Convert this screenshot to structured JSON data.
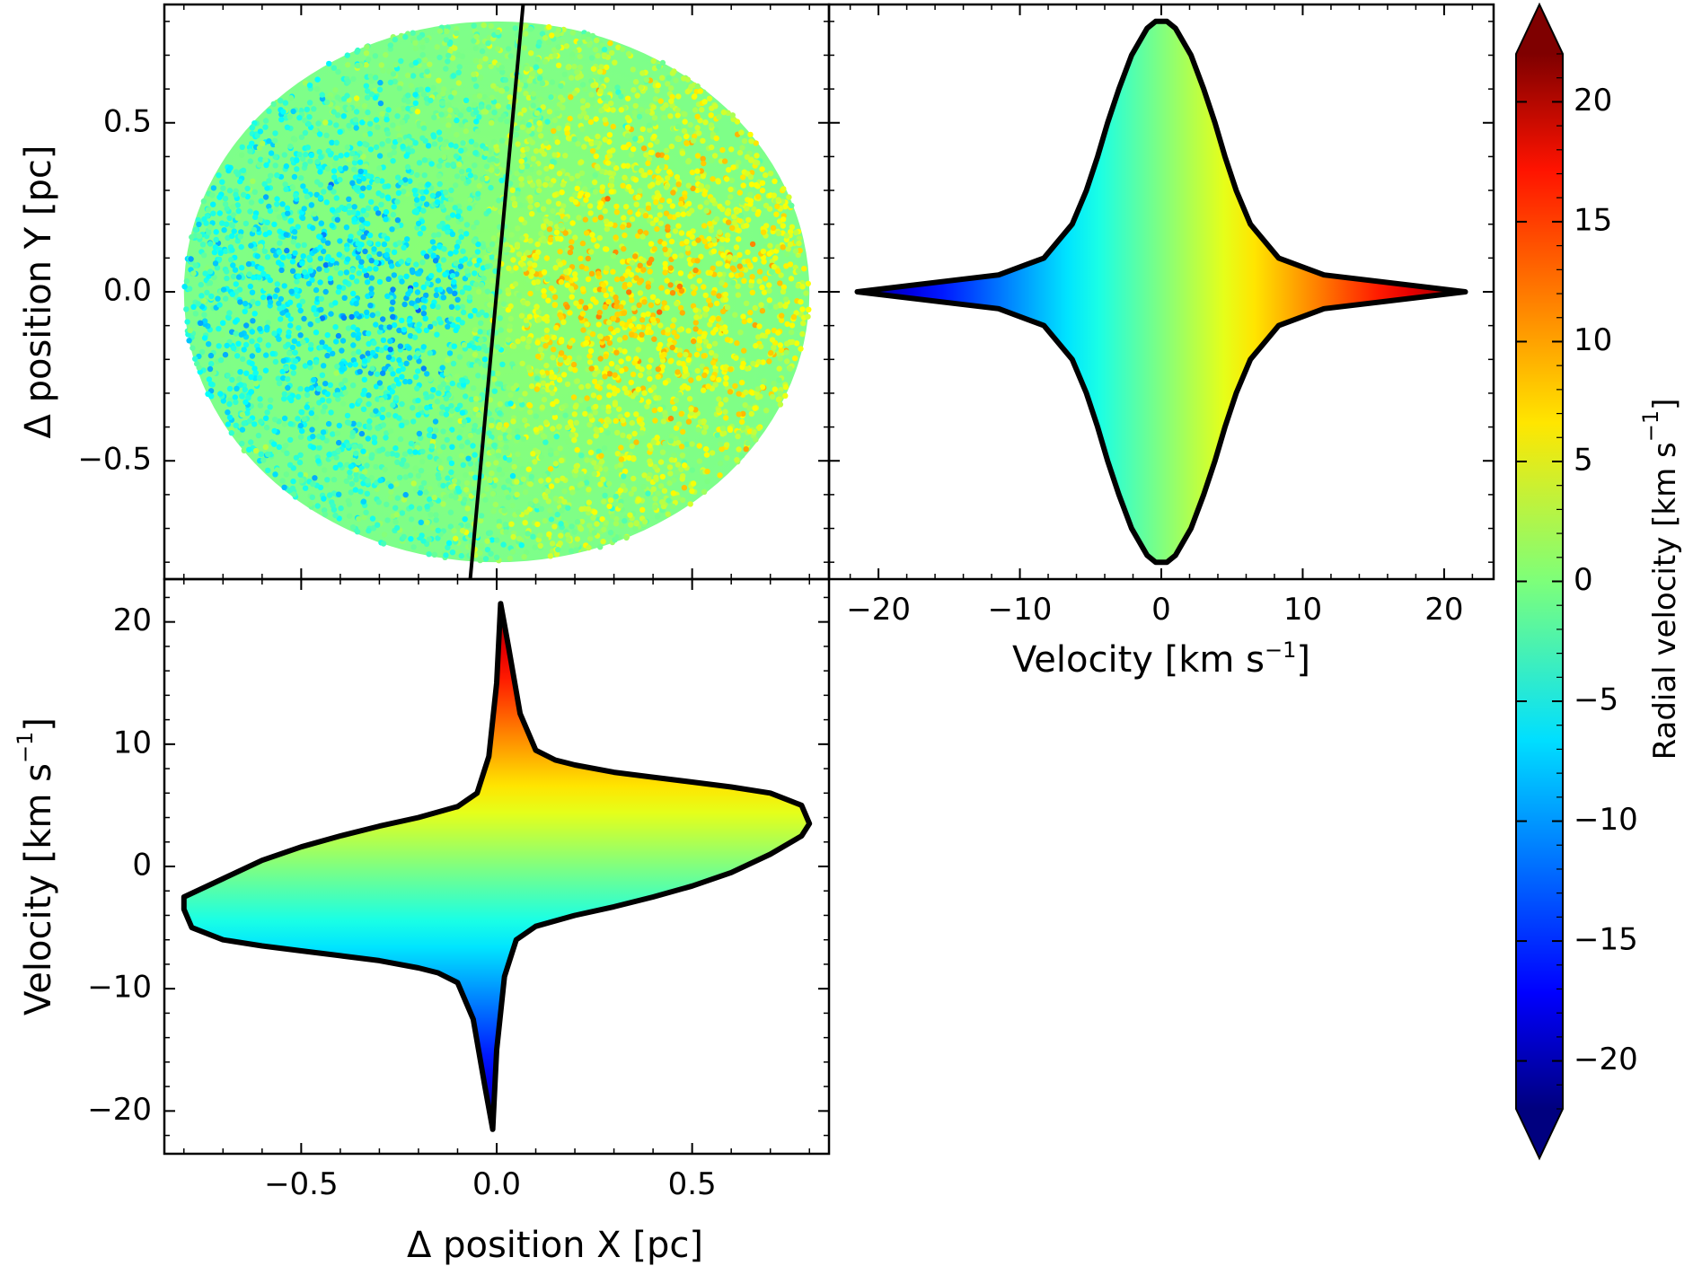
{
  "colors": {
    "outline": "#000000",
    "colormap": "jet",
    "rotation_line": "#000000"
  },
  "chart_data": [
    {
      "type": "scatter",
      "panel": "top-left",
      "xlabel": "",
      "ylabel": "Δ position Y [pc]",
      "xlim": [
        -0.85,
        0.85
      ],
      "ylim": [
        -0.85,
        0.85
      ],
      "yticks": [
        {
          "value": 0.5,
          "label": "0.5"
        },
        {
          "value": 0.0,
          "label": "0.0"
        },
        {
          "value": -0.5,
          "label": "−0.5"
        }
      ],
      "disk_radius_pc": 0.8,
      "rotation_axis_line": {
        "x": [
          -0.07,
          0.07
        ],
        "y": [
          -0.88,
          0.88
        ]
      },
      "colored_by": "radial velocity",
      "note_values": "points colored blue on left (negative velocity) and red on right (positive velocity), strongest near center"
    },
    {
      "type": "scatter",
      "panel": "top-right",
      "xlabel": "Velocity [km s−1]",
      "ylabel": "",
      "xlim": [
        -23.5,
        23.5
      ],
      "ylim": [
        -0.85,
        0.85
      ],
      "xticks": [
        {
          "value": -20,
          "label": "−20"
        },
        {
          "value": -10,
          "label": "−10"
        },
        {
          "value": 0,
          "label": "0"
        },
        {
          "value": 10,
          "label": "10"
        },
        {
          "value": 20,
          "label": "20"
        }
      ],
      "outline_y_vs_vmax": [
        [
          0.0,
          21.5
        ],
        [
          0.05,
          11.5
        ],
        [
          0.1,
          8.3
        ],
        [
          0.2,
          6.3
        ],
        [
          0.3,
          5.3
        ],
        [
          0.4,
          4.5
        ],
        [
          0.5,
          3.8
        ],
        [
          0.6,
          3.0
        ],
        [
          0.7,
          2.1
        ],
        [
          0.78,
          1.0
        ],
        [
          0.8,
          0.4
        ]
      ]
    },
    {
      "type": "scatter",
      "panel": "bottom-left",
      "xlabel": "Δ position X [pc]",
      "ylabel": "Velocity [km s−1]",
      "xlim": [
        -0.85,
        0.85
      ],
      "ylim": [
        -23.5,
        23.5
      ],
      "xticks": [
        {
          "value": -0.5,
          "label": "−0.5"
        },
        {
          "value": 0.0,
          "label": "0.0"
        },
        {
          "value": 0.5,
          "label": "0.5"
        }
      ],
      "yticks": [
        {
          "value": 20,
          "label": "20"
        },
        {
          "value": 10,
          "label": "10"
        },
        {
          "value": 0,
          "label": "0"
        },
        {
          "value": -10,
          "label": "−10"
        },
        {
          "value": -20,
          "label": "−20"
        }
      ],
      "outline_upper": [
        [
          -0.8,
          -2.5
        ],
        [
          -0.7,
          -1.0
        ],
        [
          -0.6,
          0.5
        ],
        [
          -0.5,
          1.6
        ],
        [
          -0.4,
          2.5
        ],
        [
          -0.3,
          3.3
        ],
        [
          -0.2,
          4.0
        ],
        [
          -0.1,
          4.9
        ],
        [
          -0.05,
          6.0
        ],
        [
          -0.02,
          9.0
        ],
        [
          0.0,
          15.0
        ],
        [
          0.01,
          21.5
        ],
        [
          0.03,
          18.0
        ],
        [
          0.06,
          12.5
        ],
        [
          0.1,
          9.5
        ],
        [
          0.15,
          8.7
        ],
        [
          0.2,
          8.3
        ],
        [
          0.3,
          7.7
        ],
        [
          0.4,
          7.3
        ],
        [
          0.5,
          6.9
        ],
        [
          0.6,
          6.5
        ],
        [
          0.7,
          6.0
        ],
        [
          0.78,
          5.0
        ],
        [
          0.8,
          3.5
        ]
      ],
      "outline_lower": [
        [
          0.8,
          3.5
        ],
        [
          0.78,
          2.5
        ],
        [
          0.7,
          1.0
        ],
        [
          0.6,
          -0.5
        ],
        [
          0.5,
          -1.6
        ],
        [
          0.4,
          -2.5
        ],
        [
          0.3,
          -3.3
        ],
        [
          0.2,
          -4.0
        ],
        [
          0.1,
          -4.9
        ],
        [
          0.05,
          -6.0
        ],
        [
          0.02,
          -9.0
        ],
        [
          0.0,
          -15.0
        ],
        [
          -0.01,
          -21.5
        ],
        [
          -0.03,
          -18.0
        ],
        [
          -0.06,
          -12.5
        ],
        [
          -0.1,
          -9.5
        ],
        [
          -0.15,
          -8.7
        ],
        [
          -0.2,
          -8.3
        ],
        [
          -0.3,
          -7.7
        ],
        [
          -0.4,
          -7.3
        ],
        [
          -0.5,
          -6.9
        ],
        [
          -0.6,
          -6.5
        ],
        [
          -0.7,
          -6.0
        ],
        [
          -0.78,
          -5.0
        ],
        [
          -0.8,
          -3.5
        ]
      ]
    }
  ],
  "colorbar": {
    "label": "Radial velocity [km s−1]",
    "range": [
      -22,
      22
    ],
    "extend": "both",
    "ticks": [
      {
        "value": 20,
        "label": "20"
      },
      {
        "value": 15,
        "label": "15"
      },
      {
        "value": 10,
        "label": "10"
      },
      {
        "value": 5,
        "label": "5"
      },
      {
        "value": 0,
        "label": "0"
      },
      {
        "value": -5,
        "label": "−5"
      },
      {
        "value": -10,
        "label": "−10"
      },
      {
        "value": -15,
        "label": "−15"
      },
      {
        "value": -20,
        "label": "−20"
      }
    ]
  }
}
